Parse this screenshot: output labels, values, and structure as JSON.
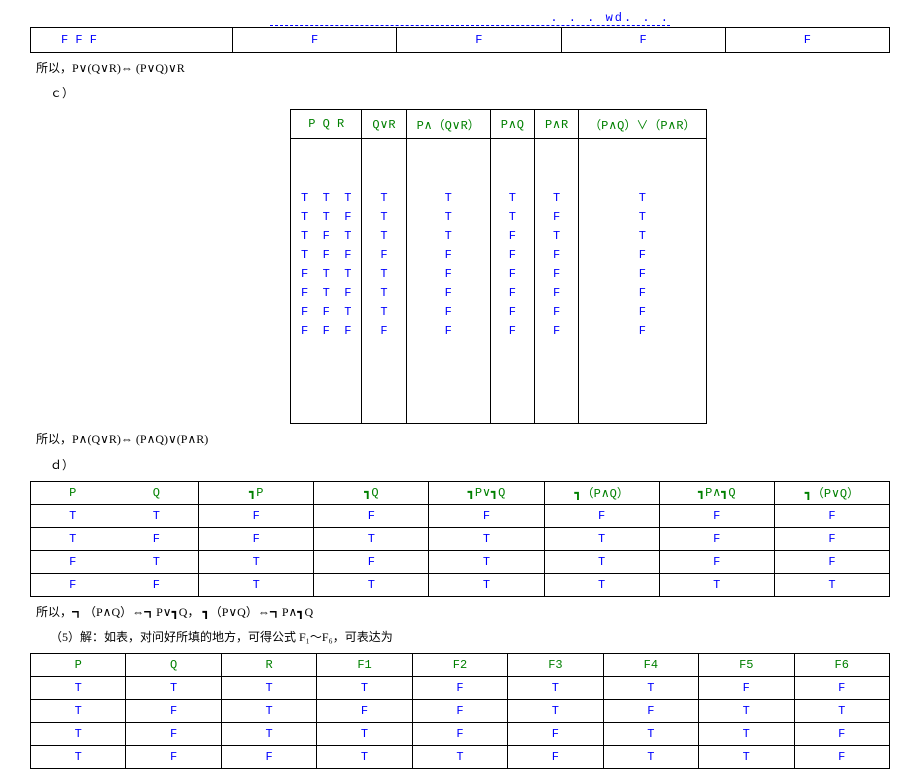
{
  "header_link": ". . . wd. . .",
  "table1": {
    "row": [
      "F   F   F",
      "F",
      "F",
      "F",
      "F"
    ]
  },
  "text_after_t1": "所以，P∨(Q∨R)⇔ (P∨Q)∨R",
  "label_c": "ｃ）",
  "table2": {
    "headers": [
      "P  Q  R",
      "Q∨R",
      "P∧（Q∨R）",
      "P∧Q",
      "P∧R",
      "（P∧Q）∨（P∧R）"
    ],
    "col0": "T  T  T\nT  T  F\nT  F  T\nT  F  F\nF  T  T\nF  T  F\nF  F  T\nF  F  F",
    "col1": "T\nT\nT\nF\nT\nT\nT\nF",
    "col2": "T\nT\nT\nF\nF\nF\nF\nF",
    "col3": "T\nT\nF\nF\nF\nF\nF\nF",
    "col4": "T\nF\nT\nF\nF\nF\nF\nF",
    "col5": "T\nT\nT\nF\nF\nF\nF\nF"
  },
  "text_after_t2": "所以，P∧(Q∨R)⇔ (P∧Q)∨(P∧R)",
  "label_d": "ｄ）",
  "table3": {
    "headers": [
      "P",
      "Q",
      "┓P",
      "┓Q",
      "┓P∨┓Q",
      "┓（P∧Q）",
      "┓P∧┓Q",
      "┓（P∨Q）"
    ],
    "rows": [
      [
        "T",
        "T",
        "F",
        "F",
        "F",
        "F",
        "F",
        "F"
      ],
      [
        "T",
        "F",
        "F",
        "T",
        "T",
        "T",
        "F",
        "F"
      ],
      [
        "F",
        "T",
        "T",
        "F",
        "T",
        "T",
        "F",
        "F"
      ],
      [
        "F",
        "F",
        "T",
        "T",
        "T",
        "T",
        "T",
        "T"
      ]
    ]
  },
  "text_after_t3_a": "所以，┓（P∧Q）⇔┓P∨┓Q，    ┓（P∨Q）⇔┓P∧┓Q",
  "text_5": "（5）解：如表，对问好所填的地方，可得公式 F₁～F₆，可表达为",
  "table4": {
    "headers": [
      "P",
      "Q",
      "R",
      "F1",
      "F2",
      "F3",
      "F4",
      "F5",
      "F6"
    ],
    "rows": [
      [
        "T",
        "T",
        "T",
        "T",
        "F",
        "T",
        "T",
        "F",
        "F"
      ],
      [
        "T",
        "F",
        "T",
        "F",
        "F",
        "T",
        "F",
        "T",
        "T"
      ],
      [
        "T",
        "F",
        "T",
        "T",
        "F",
        "F",
        "T",
        "T",
        "F"
      ],
      [
        "T",
        "F",
        "F",
        "T",
        "T",
        "F",
        "T",
        "T",
        "F"
      ]
    ]
  }
}
